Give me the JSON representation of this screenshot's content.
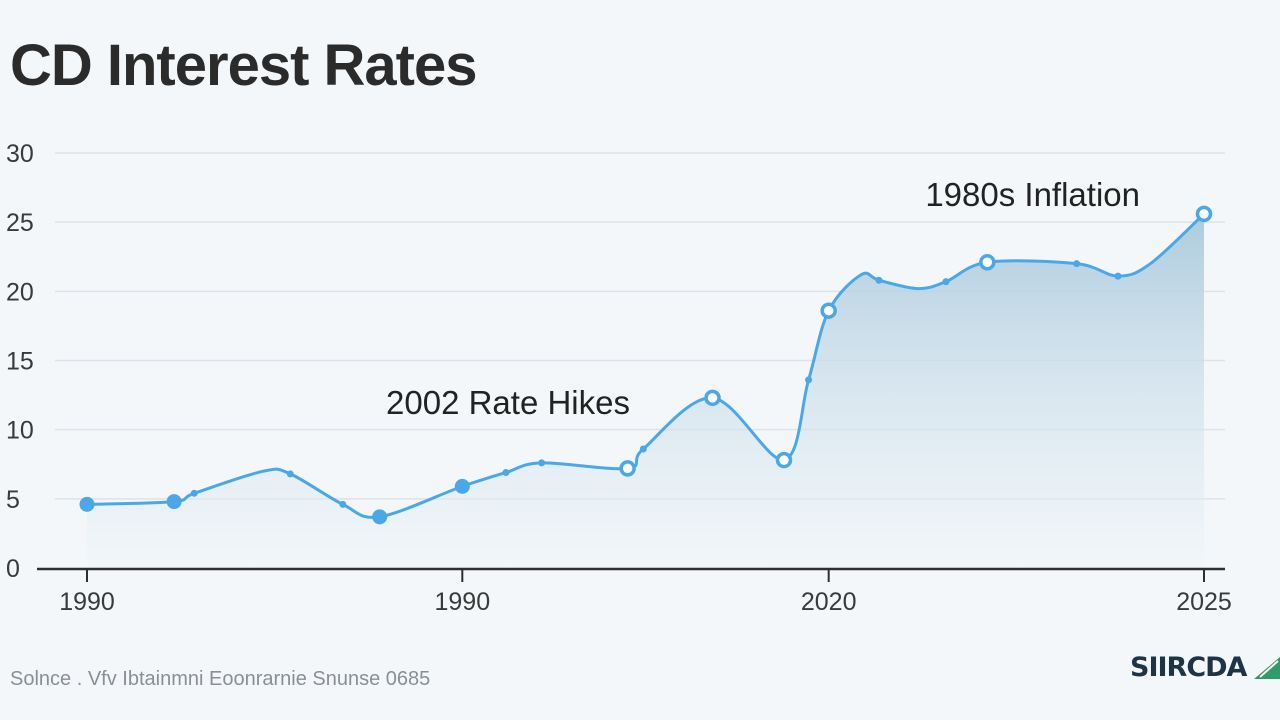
{
  "colors": {
    "line": "#4aa8e8",
    "fill_top": "#a9c9dc",
    "fill_bottom": "#eef4f8",
    "grid": "#dde3e8",
    "axis": "#2e2e2e",
    "brand_dark": "#1f3347",
    "brand_green": "#2f9a6a"
  },
  "footer": {
    "source": "Solnce . Vfv Ibtainmni Eoonrarnie Snunse 0685",
    "brand_name": "SIIRCDA",
    "brand_logo_icon": "green-triangle-icon"
  },
  "chart_data": {
    "type": "area",
    "title": "CD Interest Rates",
    "xlabel": "",
    "ylabel": "",
    "ylim": [
      0,
      30
    ],
    "y_ticks": [
      "0",
      "5",
      "10",
      "15",
      "20",
      "25",
      "30"
    ],
    "x_ticks": [
      "1990",
      "1990",
      "2020",
      "2025"
    ],
    "grid": true,
    "series": [
      {
        "points": [
          {
            "x": 0.0,
            "y": 4.6,
            "marker": "dot"
          },
          {
            "x": 0.078,
            "y": 4.8,
            "marker": "dot"
          },
          {
            "x": 0.096,
            "y": 5.4,
            "marker": "small"
          },
          {
            "x": 0.158,
            "y": 7.0,
            "marker": "none"
          },
          {
            "x": 0.182,
            "y": 6.8,
            "marker": "small"
          },
          {
            "x": 0.229,
            "y": 4.6,
            "marker": "small"
          },
          {
            "x": 0.262,
            "y": 3.7,
            "marker": "dot"
          },
          {
            "x": 0.336,
            "y": 5.9,
            "marker": "dot"
          },
          {
            "x": 0.375,
            "y": 6.9,
            "marker": "small"
          },
          {
            "x": 0.407,
            "y": 7.6,
            "marker": "small"
          },
          {
            "x": 0.484,
            "y": 7.2,
            "marker": "ring"
          },
          {
            "x": 0.498,
            "y": 8.6,
            "marker": "small"
          },
          {
            "x": 0.56,
            "y": 12.3,
            "marker": "ring"
          },
          {
            "x": 0.624,
            "y": 7.8,
            "marker": "ring"
          },
          {
            "x": 0.646,
            "y": 13.6,
            "marker": "small"
          },
          {
            "x": 0.664,
            "y": 18.6,
            "marker": "ring"
          },
          {
            "x": 0.693,
            "y": 21.2,
            "marker": "none"
          },
          {
            "x": 0.709,
            "y": 20.8,
            "marker": "small"
          },
          {
            "x": 0.744,
            "y": 20.2,
            "marker": "none"
          },
          {
            "x": 0.769,
            "y": 20.7,
            "marker": "small"
          },
          {
            "x": 0.806,
            "y": 22.1,
            "marker": "ring"
          },
          {
            "x": 0.886,
            "y": 22.0,
            "marker": "small"
          },
          {
            "x": 0.923,
            "y": 21.1,
            "marker": "small"
          },
          {
            "x": 0.952,
            "y": 22.0,
            "marker": "none"
          },
          {
            "x": 1.0,
            "y": 25.6,
            "marker": "ring"
          }
        ]
      }
    ],
    "annotations": [
      {
        "text": "1980s Inflation"
      },
      {
        "text": "2002 Rate Hikes"
      }
    ]
  }
}
